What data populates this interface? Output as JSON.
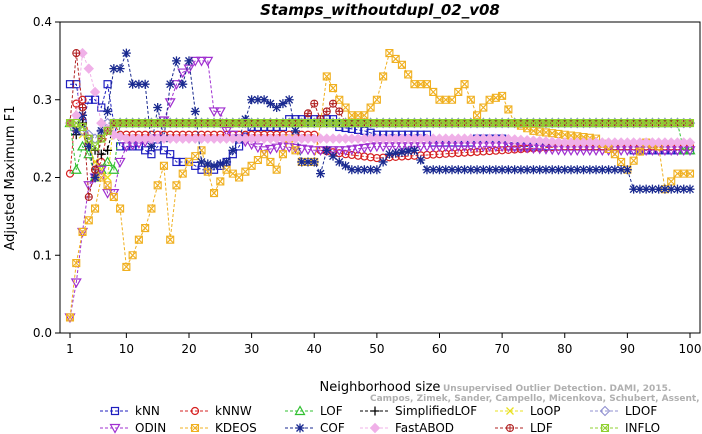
{
  "chart_data": {
    "type": "line",
    "title": "Stamps_withoutdupl_02_v08",
    "xlabel": "Neighborhood size",
    "ylabel": "Adjusted Maximum F1",
    "xlim": [
      1,
      100
    ],
    "ylim": [
      0,
      0.4
    ],
    "xticks": [
      1,
      10,
      20,
      30,
      40,
      50,
      60,
      70,
      80,
      90,
      100
    ],
    "yticks": [
      0.0,
      0.1,
      0.2,
      0.3,
      0.4
    ],
    "legend_position": "bottom",
    "credit_line1": "Unsupervised Outlier Detection. DAMI, 2015.",
    "credit_line2": "Campos, Zimek, Sander, Campello, Micenkova, Schubert, Assent, Houle",
    "series": [
      {
        "name": "kNN",
        "color": "#1f1fbf",
        "marker": "square",
        "points": [
          [
            1,
            0.32
          ],
          [
            2,
            0.32
          ],
          [
            3,
            0.27
          ],
          [
            4,
            0.3
          ],
          [
            5,
            0.3
          ],
          [
            6,
            0.29
          ],
          [
            7,
            0.32
          ],
          [
            8,
            0.27
          ],
          [
            9,
            0.24
          ],
          [
            10,
            0.24
          ],
          [
            12,
            0.24
          ],
          [
            14,
            0.23
          ],
          [
            15,
            0.24
          ],
          [
            17,
            0.23
          ],
          [
            18,
            0.22
          ],
          [
            20,
            0.22
          ],
          [
            22,
            0.21
          ],
          [
            24,
            0.21
          ],
          [
            26,
            0.22
          ],
          [
            28,
            0.24
          ],
          [
            30,
            0.265
          ],
          [
            35,
            0.265
          ],
          [
            36,
            0.275
          ],
          [
            40,
            0.275
          ],
          [
            43,
            0.275
          ],
          [
            44,
            0.265
          ],
          [
            48,
            0.26
          ],
          [
            50,
            0.255
          ],
          [
            58,
            0.255
          ],
          [
            59,
            0.245
          ],
          [
            65,
            0.245
          ],
          [
            66,
            0.25
          ],
          [
            70,
            0.25
          ],
          [
            71,
            0.24
          ],
          [
            90,
            0.24
          ],
          [
            91,
            0.235
          ],
          [
            100,
            0.235
          ]
        ]
      },
      {
        "name": "kNNW",
        "color": "#d62020",
        "marker": "circle",
        "points": [
          [
            1,
            0.205
          ],
          [
            2,
            0.295
          ],
          [
            3,
            0.3
          ],
          [
            4,
            0.25
          ],
          [
            5,
            0.21
          ],
          [
            6,
            0.22
          ],
          [
            7,
            0.26
          ],
          [
            8,
            0.27
          ],
          [
            9,
            0.255
          ],
          [
            10,
            0.255
          ],
          [
            20,
            0.255
          ],
          [
            30,
            0.255
          ],
          [
            40,
            0.255
          ],
          [
            41,
            0.235
          ],
          [
            45,
            0.23
          ],
          [
            50,
            0.225
          ],
          [
            60,
            0.23
          ],
          [
            70,
            0.235
          ],
          [
            80,
            0.24
          ],
          [
            90,
            0.24
          ],
          [
            100,
            0.24
          ]
        ]
      },
      {
        "name": "LOF",
        "color": "#30c030",
        "marker": "triangle-up",
        "points": [
          [
            1,
            0.27
          ],
          [
            2,
            0.21
          ],
          [
            3,
            0.24
          ],
          [
            4,
            0.23
          ],
          [
            5,
            0.2
          ],
          [
            6,
            0.21
          ],
          [
            7,
            0.22
          ],
          [
            8,
            0.21
          ],
          [
            9,
            0.27
          ],
          [
            20,
            0.27
          ],
          [
            40,
            0.27
          ],
          [
            60,
            0.27
          ],
          [
            80,
            0.27
          ],
          [
            98,
            0.27
          ],
          [
            99,
            0.235
          ],
          [
            100,
            0.235
          ]
        ]
      },
      {
        "name": "SimplifiedLOF",
        "color": "#000000",
        "marker": "plus",
        "points": [
          [
            1,
            0.27
          ],
          [
            2,
            0.255
          ],
          [
            3,
            0.27
          ],
          [
            4,
            0.24
          ],
          [
            5,
            0.235
          ],
          [
            6,
            0.23
          ],
          [
            7,
            0.235
          ],
          [
            8,
            0.27
          ],
          [
            9,
            0.27
          ],
          [
            30,
            0.27
          ],
          [
            60,
            0.27
          ],
          [
            90,
            0.27
          ],
          [
            100,
            0.27
          ]
        ]
      },
      {
        "name": "LoOP",
        "color": "#e8e020",
        "marker": "x",
        "points": [
          [
            1,
            0.27
          ],
          [
            2,
            0.265
          ],
          [
            3,
            0.255
          ],
          [
            4,
            0.24
          ],
          [
            5,
            0.22
          ],
          [
            6,
            0.21
          ],
          [
            7,
            0.2
          ],
          [
            8,
            0.27
          ],
          [
            10,
            0.27
          ],
          [
            40,
            0.27
          ],
          [
            70,
            0.27
          ],
          [
            100,
            0.27
          ]
        ]
      },
      {
        "name": "LDOF",
        "color": "#9090d0",
        "marker": "diamond",
        "points": [
          [
            1,
            0.27
          ],
          [
            3,
            0.26
          ],
          [
            5,
            0.25
          ],
          [
            7,
            0.27
          ],
          [
            20,
            0.27
          ],
          [
            50,
            0.27
          ],
          [
            80,
            0.27
          ],
          [
            100,
            0.27
          ]
        ]
      },
      {
        "name": "ODIN",
        "color": "#a030d0",
        "marker": "triangle-down",
        "points": [
          [
            1,
            0.02
          ],
          [
            2,
            0.065
          ],
          [
            3,
            0.13
          ],
          [
            4,
            0.19
          ],
          [
            5,
            0.2
          ],
          [
            6,
            0.21
          ],
          [
            7,
            0.18
          ],
          [
            8,
            0.18
          ],
          [
            9,
            0.22
          ],
          [
            10,
            0.24
          ],
          [
            15,
            0.25
          ],
          [
            18,
            0.32
          ],
          [
            19,
            0.335
          ],
          [
            20,
            0.34
          ],
          [
            21,
            0.35
          ],
          [
            22,
            0.35
          ],
          [
            23,
            0.35
          ],
          [
            24,
            0.285
          ],
          [
            25,
            0.285
          ],
          [
            26,
            0.26
          ],
          [
            28,
            0.25
          ],
          [
            32,
            0.235
          ],
          [
            35,
            0.24
          ],
          [
            40,
            0.235
          ],
          [
            45,
            0.235
          ],
          [
            50,
            0.24
          ],
          [
            60,
            0.24
          ],
          [
            70,
            0.24
          ],
          [
            80,
            0.235
          ],
          [
            90,
            0.235
          ],
          [
            100,
            0.235
          ]
        ]
      },
      {
        "name": "KDEOS",
        "color": "#f0b020",
        "marker": "square-x",
        "points": [
          [
            1,
            0.02
          ],
          [
            2,
            0.09
          ],
          [
            3,
            0.13
          ],
          [
            4,
            0.145
          ],
          [
            5,
            0.16
          ],
          [
            6,
            0.2
          ],
          [
            7,
            0.19
          ],
          [
            8,
            0.175
          ],
          [
            9,
            0.16
          ],
          [
            10,
            0.085
          ],
          [
            11,
            0.1
          ],
          [
            12,
            0.12
          ],
          [
            13,
            0.135
          ],
          [
            14,
            0.16
          ],
          [
            15,
            0.19
          ],
          [
            16,
            0.215
          ],
          [
            17,
            0.12
          ],
          [
            18,
            0.19
          ],
          [
            20,
            0.22
          ],
          [
            22,
            0.235
          ],
          [
            24,
            0.18
          ],
          [
            26,
            0.21
          ],
          [
            28,
            0.2
          ],
          [
            30,
            0.215
          ],
          [
            32,
            0.23
          ],
          [
            34,
            0.21
          ],
          [
            36,
            0.25
          ],
          [
            38,
            0.22
          ],
          [
            40,
            0.22
          ],
          [
            41,
            0.27
          ],
          [
            42,
            0.33
          ],
          [
            44,
            0.3
          ],
          [
            46,
            0.28
          ],
          [
            48,
            0.28
          ],
          [
            50,
            0.3
          ],
          [
            52,
            0.36
          ],
          [
            54,
            0.345
          ],
          [
            56,
            0.32
          ],
          [
            58,
            0.32
          ],
          [
            60,
            0.3
          ],
          [
            62,
            0.3
          ],
          [
            64,
            0.32
          ],
          [
            66,
            0.28
          ],
          [
            68,
            0.3
          ],
          [
            70,
            0.305
          ],
          [
            72,
            0.27
          ],
          [
            75,
            0.26
          ],
          [
            80,
            0.255
          ],
          [
            85,
            0.25
          ],
          [
            88,
            0.23
          ],
          [
            90,
            0.21
          ],
          [
            93,
            0.245
          ],
          [
            95,
            0.24
          ],
          [
            96,
            0.185
          ],
          [
            98,
            0.205
          ],
          [
            100,
            0.205
          ]
        ]
      },
      {
        "name": "COF",
        "color": "#1a2a90",
        "marker": "asterisk",
        "points": [
          [
            1,
            0.27
          ],
          [
            2,
            0.26
          ],
          [
            3,
            0.28
          ],
          [
            4,
            0.24
          ],
          [
            5,
            0.2
          ],
          [
            6,
            0.26
          ],
          [
            7,
            0.285
          ],
          [
            8,
            0.34
          ],
          [
            9,
            0.34
          ],
          [
            10,
            0.36
          ],
          [
            11,
            0.32
          ],
          [
            12,
            0.32
          ],
          [
            13,
            0.32
          ],
          [
            14,
            0.24
          ],
          [
            15,
            0.29
          ],
          [
            16,
            0.25
          ],
          [
            17,
            0.32
          ],
          [
            18,
            0.35
          ],
          [
            19,
            0.32
          ],
          [
            20,
            0.35
          ],
          [
            22,
            0.22
          ],
          [
            24,
            0.215
          ],
          [
            26,
            0.22
          ],
          [
            28,
            0.25
          ],
          [
            30,
            0.3
          ],
          [
            32,
            0.3
          ],
          [
            34,
            0.29
          ],
          [
            36,
            0.3
          ],
          [
            38,
            0.22
          ],
          [
            40,
            0.22
          ],
          [
            41,
            0.205
          ],
          [
            42,
            0.235
          ],
          [
            44,
            0.22
          ],
          [
            46,
            0.21
          ],
          [
            50,
            0.21
          ],
          [
            52,
            0.23
          ],
          [
            56,
            0.235
          ],
          [
            58,
            0.21
          ],
          [
            65,
            0.21
          ],
          [
            75,
            0.21
          ],
          [
            85,
            0.21
          ],
          [
            90,
            0.21
          ],
          [
            91,
            0.185
          ],
          [
            95,
            0.185
          ],
          [
            100,
            0.185
          ]
        ]
      },
      {
        "name": "FastABOD",
        "color": "#f0b0e8",
        "marker": "diamond-filled",
        "points": [
          [
            1,
            0.27
          ],
          [
            2,
            0.28
          ],
          [
            3,
            0.36
          ],
          [
            4,
            0.34
          ],
          [
            5,
            0.31
          ],
          [
            6,
            0.27
          ],
          [
            8,
            0.255
          ],
          [
            10,
            0.25
          ],
          [
            20,
            0.25
          ],
          [
            30,
            0.25
          ],
          [
            40,
            0.25
          ],
          [
            50,
            0.25
          ],
          [
            60,
            0.25
          ],
          [
            70,
            0.25
          ],
          [
            80,
            0.245
          ],
          [
            90,
            0.245
          ],
          [
            100,
            0.245
          ]
        ]
      },
      {
        "name": "LDF",
        "color": "#b02020",
        "marker": "circle-plus",
        "points": [
          [
            1,
            0.27
          ],
          [
            2,
            0.36
          ],
          [
            3,
            0.29
          ],
          [
            4,
            0.175
          ],
          [
            5,
            0.21
          ],
          [
            6,
            0.25
          ],
          [
            8,
            0.27
          ],
          [
            20,
            0.27
          ],
          [
            38,
            0.27
          ],
          [
            40,
            0.295
          ],
          [
            41,
            0.275
          ],
          [
            42,
            0.285
          ],
          [
            43,
            0.295
          ],
          [
            44,
            0.285
          ],
          [
            45,
            0.27
          ],
          [
            60,
            0.27
          ],
          [
            80,
            0.27
          ],
          [
            100,
            0.27
          ]
        ]
      },
      {
        "name": "INFLO",
        "color": "#90d030",
        "marker": "square-x",
        "points": [
          [
            1,
            0.27
          ],
          [
            2,
            0.27
          ],
          [
            3,
            0.265
          ],
          [
            4,
            0.25
          ],
          [
            5,
            0.24
          ],
          [
            6,
            0.25
          ],
          [
            7,
            0.26
          ],
          [
            8,
            0.27
          ],
          [
            20,
            0.27
          ],
          [
            50,
            0.27
          ],
          [
            80,
            0.27
          ],
          [
            100,
            0.27
          ]
        ]
      }
    ]
  }
}
